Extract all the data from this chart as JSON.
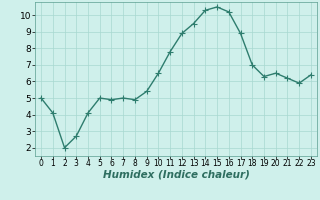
{
  "x": [
    0,
    1,
    2,
    3,
    4,
    5,
    6,
    7,
    8,
    9,
    10,
    11,
    12,
    13,
    14,
    15,
    16,
    17,
    18,
    19,
    20,
    21,
    22,
    23
  ],
  "y": [
    5.0,
    4.1,
    2.0,
    2.7,
    4.1,
    5.0,
    4.9,
    5.0,
    4.9,
    5.4,
    6.5,
    7.8,
    8.9,
    9.5,
    10.3,
    10.5,
    10.2,
    8.9,
    7.0,
    6.3,
    6.5,
    6.2,
    5.9,
    6.4
  ],
  "line_color": "#2e7d6e",
  "marker": "+",
  "marker_size": 4,
  "linewidth": 1.0,
  "xlabel": "Humidex (Indice chaleur)",
  "xlabel_fontsize": 7.5,
  "xlim": [
    -0.5,
    23.5
  ],
  "ylim": [
    1.5,
    10.8
  ],
  "yticks": [
    2,
    3,
    4,
    5,
    6,
    7,
    8,
    9,
    10
  ],
  "xticks": [
    0,
    1,
    2,
    3,
    4,
    5,
    6,
    7,
    8,
    9,
    10,
    11,
    12,
    13,
    14,
    15,
    16,
    17,
    18,
    19,
    20,
    21,
    22,
    23
  ],
  "background_color": "#cff0eb",
  "grid_color": "#a8d8d0",
  "ytick_fontsize": 6.5,
  "xtick_fontsize": 5.5,
  "fig_bg": "#cff0eb"
}
